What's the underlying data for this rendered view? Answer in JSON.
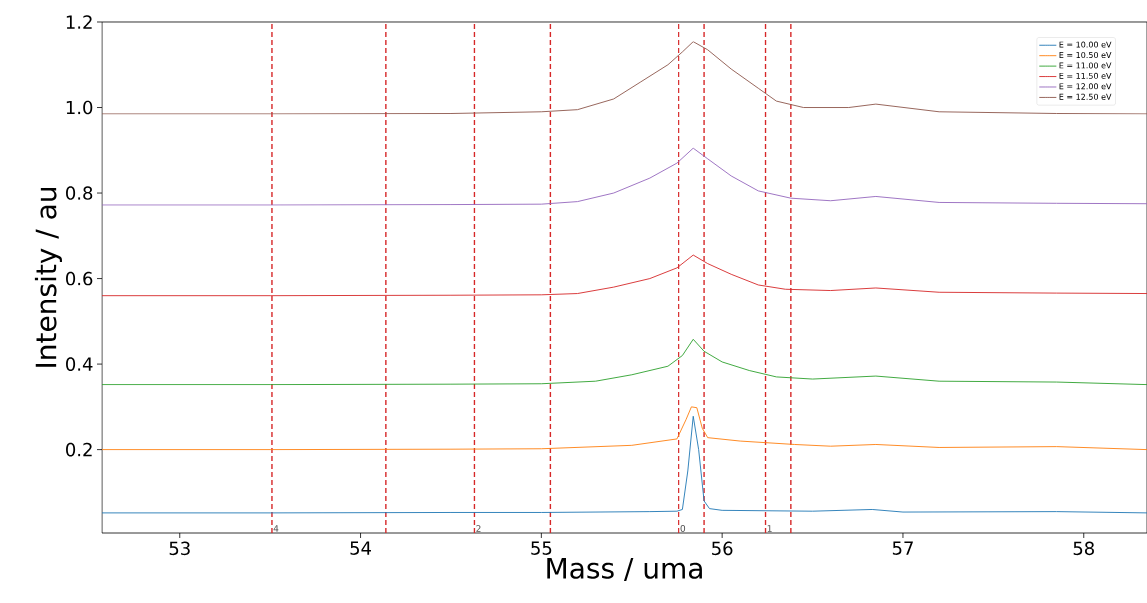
{
  "chart_data": {
    "type": "line",
    "xlabel": "Mass / uma",
    "ylabel": "Intensity / au",
    "xlim": [
      52.57,
      58.35
    ],
    "ylim": [
      0.005,
      1.2
    ],
    "xticks": [
      53,
      54,
      55,
      56,
      57,
      58
    ],
    "yticks": [
      0.2,
      0.4,
      0.6,
      0.8,
      {
        "value": 1.0,
        "label": "1.0"
      },
      1.2
    ],
    "annotations": [
      {
        "text": "4",
        "x": 53.51,
        "y": 0.005
      },
      {
        "text": "2",
        "x": 54.63,
        "y": 0.005
      },
      {
        "text": "0",
        "x": 55.76,
        "y": 0.005
      },
      {
        "text": "1",
        "x": 56.24,
        "y": 0.005
      }
    ],
    "legend": "top right",
    "grid": false,
    "marker": "none",
    "line_style": "solid",
    "ref_lines": [
      {
        "axis": "x",
        "value": 53.51,
        "color": "#d62728",
        "line_style": "dashed"
      },
      {
        "axis": "x",
        "value": 54.14,
        "color": "#d62728",
        "line_style": "dashed"
      },
      {
        "axis": "x",
        "value": 54.63,
        "color": "#d62728",
        "line_style": "dashed"
      },
      {
        "axis": "x",
        "value": 55.05,
        "color": "#d62728",
        "line_style": "dashed"
      },
      {
        "axis": "x",
        "value": 55.76,
        "color": "#d62728",
        "line_style": "dashed"
      },
      {
        "axis": "x",
        "value": 55.9,
        "color": "#d62728",
        "line_style": "dashed"
      },
      {
        "axis": "x",
        "value": 56.24,
        "color": "#d62728",
        "line_style": "dashed"
      },
      {
        "axis": "x",
        "value": 56.38,
        "color": "#d62728",
        "line_style": "dashed"
      }
    ],
    "series": [
      {
        "name": "E = 10.00 eV",
        "color": "#1f77b4",
        "x": [
          52.57,
          53.5,
          54.5,
          55.0,
          55.6,
          55.75,
          55.78,
          55.81,
          55.84,
          55.87,
          55.9,
          55.93,
          56.0,
          56.5,
          56.83,
          57.0,
          57.85,
          58.35
        ],
        "values": [
          0.052,
          0.052,
          0.053,
          0.053,
          0.055,
          0.056,
          0.06,
          0.15,
          0.278,
          0.2,
          0.08,
          0.062,
          0.058,
          0.056,
          0.06,
          0.054,
          0.055,
          0.052
        ]
      },
      {
        "name": "E = 10.50 eV",
        "color": "#ff7f0e",
        "x": [
          52.57,
          53.5,
          54.5,
          55.0,
          55.5,
          55.75,
          55.8,
          55.83,
          55.86,
          55.89,
          55.92,
          56.1,
          56.4,
          56.6,
          56.85,
          57.2,
          57.85,
          58.35
        ],
        "values": [
          0.2,
          0.2,
          0.201,
          0.202,
          0.21,
          0.225,
          0.27,
          0.3,
          0.298,
          0.25,
          0.228,
          0.22,
          0.212,
          0.208,
          0.212,
          0.205,
          0.207,
          0.2
        ]
      },
      {
        "name": "E = 11.00 eV",
        "color": "#2ca02c",
        "x": [
          52.57,
          53.5,
          54.5,
          55.0,
          55.3,
          55.5,
          55.7,
          55.78,
          55.84,
          55.9,
          56.0,
          56.15,
          56.3,
          56.5,
          56.85,
          57.2,
          57.85,
          58.35
        ],
        "values": [
          0.352,
          0.352,
          0.353,
          0.354,
          0.36,
          0.375,
          0.395,
          0.42,
          0.458,
          0.43,
          0.405,
          0.385,
          0.37,
          0.365,
          0.372,
          0.36,
          0.358,
          0.352
        ]
      },
      {
        "name": "E = 11.50 eV",
        "color": "#d62728",
        "x": [
          52.57,
          53.5,
          54.5,
          55.0,
          55.2,
          55.4,
          55.6,
          55.75,
          55.84,
          55.92,
          56.05,
          56.2,
          56.35,
          56.6,
          56.85,
          57.2,
          57.85,
          58.35
        ],
        "values": [
          0.56,
          0.56,
          0.561,
          0.562,
          0.565,
          0.58,
          0.6,
          0.625,
          0.655,
          0.635,
          0.61,
          0.585,
          0.575,
          0.572,
          0.578,
          0.568,
          0.566,
          0.565
        ]
      },
      {
        "name": "E = 12.00 eV",
        "color": "#9467bd",
        "x": [
          52.57,
          53.5,
          54.5,
          55.0,
          55.2,
          55.4,
          55.6,
          55.75,
          55.84,
          55.92,
          56.05,
          56.2,
          56.38,
          56.6,
          56.85,
          57.2,
          57.85,
          58.35
        ],
        "values": [
          0.772,
          0.772,
          0.773,
          0.774,
          0.78,
          0.8,
          0.835,
          0.87,
          0.905,
          0.88,
          0.84,
          0.805,
          0.788,
          0.782,
          0.792,
          0.778,
          0.776,
          0.775
        ]
      },
      {
        "name": "E = 12.50 eV",
        "color": "#8c564b",
        "x": [
          52.57,
          53.5,
          54.5,
          55.0,
          55.2,
          55.4,
          55.55,
          55.7,
          55.78,
          55.84,
          55.92,
          56.05,
          56.2,
          56.3,
          56.45,
          56.7,
          56.85,
          57.2,
          57.85,
          58.35
        ],
        "values": [
          0.985,
          0.985,
          0.986,
          0.99,
          0.995,
          1.02,
          1.06,
          1.1,
          1.13,
          1.154,
          1.135,
          1.09,
          1.045,
          1.015,
          1.0,
          1.0,
          1.008,
          0.99,
          0.986,
          0.985
        ]
      }
    ]
  }
}
